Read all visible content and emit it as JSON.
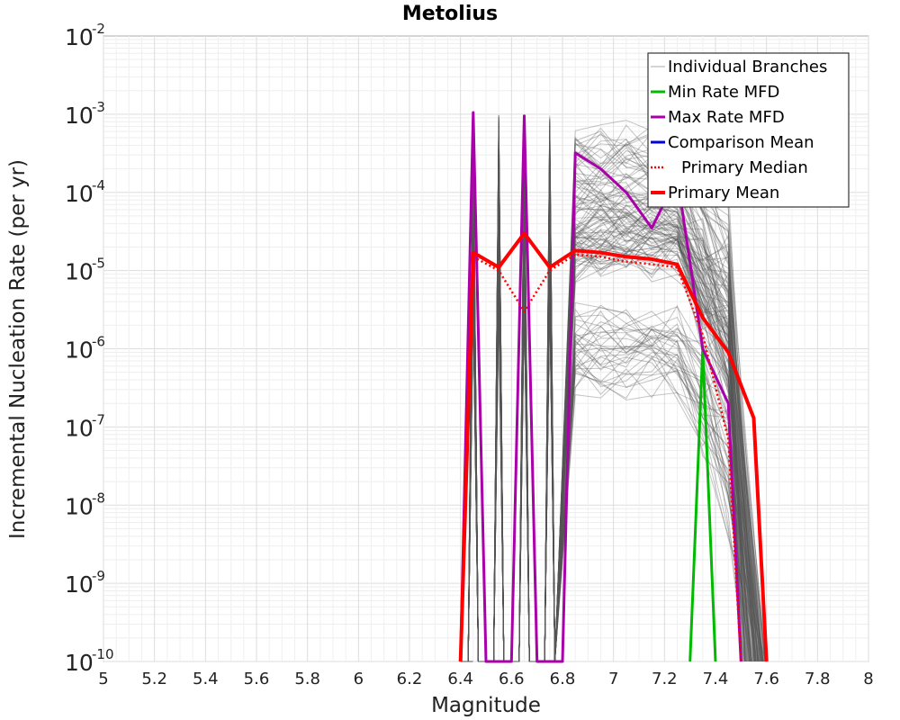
{
  "chart_data": {
    "type": "line",
    "title": "Metolius",
    "xlabel": "Magnitude",
    "ylabel": "Incremental Nucleation Rate (per yr)",
    "xlim": [
      5.0,
      8.0
    ],
    "ylim": [
      1e-10,
      0.01
    ],
    "y_scale": "log",
    "grid": true,
    "legend_position": "top-right",
    "x_ticks": [
      "5",
      "5.2",
      "5.4",
      "5.6",
      "5.8",
      "6",
      "6.2",
      "6.4",
      "6.6",
      "6.8",
      "7",
      "7.2",
      "7.4",
      "7.6",
      "7.8",
      "8"
    ],
    "y_ticks": [
      {
        "base": "10",
        "exp": "-10"
      },
      {
        "base": "10",
        "exp": "-9"
      },
      {
        "base": "10",
        "exp": "-8"
      },
      {
        "base": "10",
        "exp": "-7"
      },
      {
        "base": "10",
        "exp": "-6"
      },
      {
        "base": "10",
        "exp": "-5"
      },
      {
        "base": "10",
        "exp": "-4"
      },
      {
        "base": "10",
        "exp": "-3"
      },
      {
        "base": "10",
        "exp": "-2"
      }
    ],
    "series": [
      {
        "name": "Individual Branches",
        "color": "#555555",
        "style": "thin",
        "x": [
          6.35,
          6.45,
          6.55,
          6.65,
          6.75,
          6.85,
          6.95,
          7.05,
          7.15,
          7.25,
          7.35,
          7.45,
          7.55
        ],
        "y": [
          1e-10,
          0.00105,
          0.00105,
          0.00095,
          0.0005,
          0.0004,
          0.0002,
          0.0001,
          6e-05,
          4e-05,
          2e-05,
          8e-06,
          4e-06
        ]
      },
      {
        "name": "Min Rate MFD",
        "color": "#00bb00",
        "style": "solid",
        "x": [
          7.3,
          7.35,
          7.4
        ],
        "y": [
          1e-10,
          1e-06,
          1e-10
        ]
      },
      {
        "name": "Max Rate MFD",
        "color": "#aa00aa",
        "style": "solid",
        "x": [
          6.4,
          6.45,
          6.5,
          6.6,
          6.65,
          6.7,
          6.8,
          6.85,
          6.95,
          7.05,
          7.15,
          7.25,
          7.35,
          7.45,
          7.5
        ],
        "y": [
          1e-10,
          0.00105,
          1e-10,
          1e-10,
          0.00095,
          1e-10,
          1e-10,
          0.00032,
          0.0002,
          0.0001,
          3.5e-05,
          0.00016,
          1e-06,
          2e-07,
          1e-10
        ]
      },
      {
        "name": "Comparison Mean",
        "color": "#0000dd",
        "style": "solid",
        "x": [],
        "y": []
      },
      {
        "name": "Primary Median",
        "color": "#ff0000",
        "style": "dotted",
        "x": [
          6.45,
          6.55,
          6.65,
          6.75,
          6.85,
          6.95,
          7.05,
          7.15,
          7.25,
          7.35,
          7.45,
          7.5
        ],
        "y": [
          1.5e-05,
          1e-05,
          3e-06,
          1e-05,
          1.6e-05,
          1.5e-05,
          1.3e-05,
          1.2e-05,
          1.1e-05,
          1.5e-06,
          7e-08,
          1e-10
        ]
      },
      {
        "name": "Primary Mean",
        "color": "#ff0000",
        "style": "thick",
        "x": [
          6.4,
          6.45,
          6.55,
          6.65,
          6.75,
          6.85,
          6.95,
          7.05,
          7.15,
          7.25,
          7.35,
          7.45,
          7.55,
          7.6
        ],
        "y": [
          1e-10,
          1.7e-05,
          1.1e-05,
          3e-05,
          1.1e-05,
          1.8e-05,
          1.7e-05,
          1.5e-05,
          1.4e-05,
          1.2e-05,
          2.5e-06,
          9e-07,
          1.3e-07,
          1e-10
        ]
      }
    ]
  }
}
